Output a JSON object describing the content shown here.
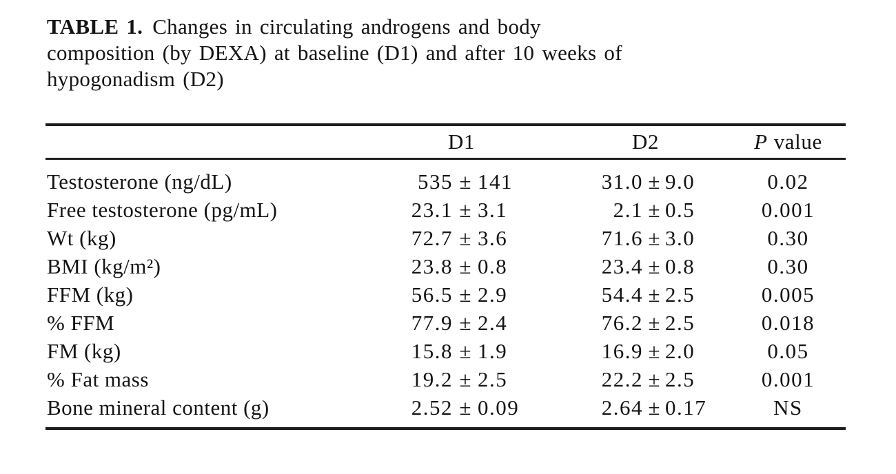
{
  "title": {
    "label": "TABLE 1.",
    "line1": "Changes in circulating androgens and body",
    "line2": "composition (by DEXA) at baseline (D1) and after 10 weeks of",
    "line3": "hypogonadism (D2)"
  },
  "table": {
    "pm_symbol": "±",
    "columns": {
      "d1": "D1",
      "d2": "D2",
      "p_prefix": "P",
      "p_suffix": "value"
    },
    "rows": [
      {
        "label": "Testosterone (ng/dL)",
        "d1": {
          "mean": "535",
          "sd": "141"
        },
        "d2": {
          "mean": "31.0",
          "sd": "9.0"
        },
        "p": "0.02"
      },
      {
        "label": "Free testosterone (pg/mL)",
        "d1": {
          "mean": "23.1",
          "sd": "3.1"
        },
        "d2": {
          "mean": "2.1",
          "sd": "0.5"
        },
        "p": "0.001"
      },
      {
        "label": "Wt (kg)",
        "d1": {
          "mean": "72.7",
          "sd": "3.6"
        },
        "d2": {
          "mean": "71.6",
          "sd": "3.0"
        },
        "p": "0.30"
      },
      {
        "label": "BMI (kg/m²)",
        "d1": {
          "mean": "23.8",
          "sd": "0.8"
        },
        "d2": {
          "mean": "23.4",
          "sd": "0.8"
        },
        "p": "0.30"
      },
      {
        "label": "FFM (kg)",
        "d1": {
          "mean": "56.5",
          "sd": "2.9"
        },
        "d2": {
          "mean": "54.4",
          "sd": "2.5"
        },
        "p": "0.005"
      },
      {
        "label": "% FFM",
        "d1": {
          "mean": "77.9",
          "sd": "2.4"
        },
        "d2": {
          "mean": "76.2",
          "sd": "2.5"
        },
        "p": "0.018"
      },
      {
        "label": "FM (kg)",
        "d1": {
          "mean": "15.8",
          "sd": "1.9"
        },
        "d2": {
          "mean": "16.9",
          "sd": "2.0"
        },
        "p": "0.05"
      },
      {
        "label": "% Fat mass",
        "d1": {
          "mean": "19.2",
          "sd": "2.5"
        },
        "d2": {
          "mean": "22.2",
          "sd": "2.5"
        },
        "p": "0.001"
      },
      {
        "label": "Bone mineral content (g)",
        "d1": {
          "mean": "2.52",
          "sd": "0.09"
        },
        "d2": {
          "mean": "2.64",
          "sd": "0.17"
        },
        "p": "NS"
      }
    ]
  },
  "colors": {
    "background": "#ffffff",
    "text": "#141414",
    "rule": "#1f1f1f"
  }
}
